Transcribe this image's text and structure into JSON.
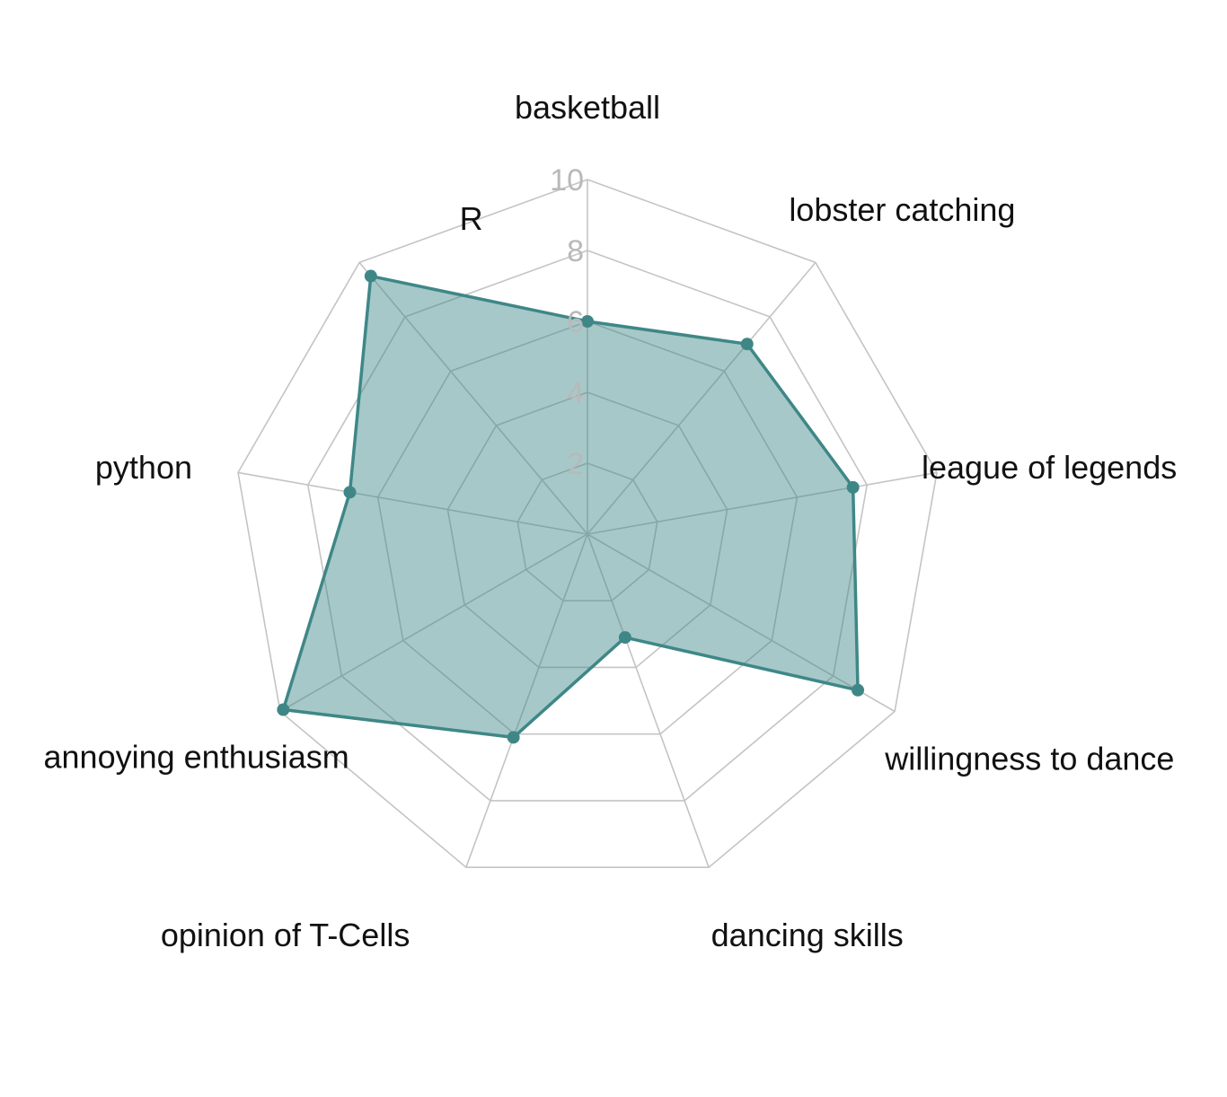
{
  "chart_data": {
    "type": "radar",
    "categories": [
      "basketball",
      "lobster catching",
      "league of legends",
      "willingness to dance",
      "dancing skills",
      "opinion of T-Cells",
      "annoying enthusiasm",
      "python",
      "R"
    ],
    "series": [
      {
        "values": [
          6,
          7,
          7.6,
          8.8,
          3.1,
          6.1,
          9.9,
          6.8,
          9.5
        ]
      }
    ],
    "ticks": [
      2,
      4,
      6,
      8,
      10
    ],
    "tick_labels": [
      "2",
      "4",
      "6",
      "8",
      "10"
    ],
    "rmax": 10,
    "grid": true,
    "legend": "none",
    "colors": {
      "line": "#3f8787",
      "fill": "#3f8787",
      "fill_opacity": 0.46,
      "grid": "#c4c4c4",
      "tick_text": "#b9b9b9",
      "label_text": "#111111"
    }
  }
}
